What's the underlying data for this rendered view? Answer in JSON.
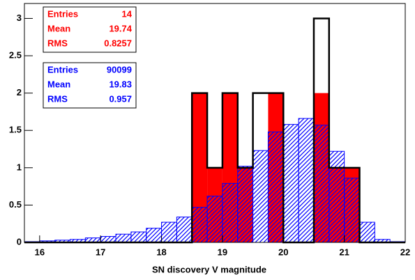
{
  "chart_data": {
    "type": "histogram",
    "xlabel": "SN discovery V magnitude",
    "bins": [
      15.75,
      16,
      16.25,
      16.5,
      16.75,
      17,
      17.25,
      17.5,
      17.75,
      18,
      18.25,
      18.5,
      18.75,
      19,
      19.25,
      19.5,
      19.75,
      20,
      20.25,
      20.5,
      20.75,
      21,
      21.25,
      21.5,
      21.75,
      22
    ],
    "series": [
      {
        "color": "#ff0000",
        "fill": "solid",
        "values": [
          0,
          0,
          0,
          0,
          0,
          0,
          0,
          0,
          0,
          0,
          0,
          2,
          1,
          2,
          1,
          0,
          2,
          0,
          0,
          2,
          1,
          1,
          0,
          0,
          0
        ]
      },
      {
        "color": "#0000ff",
        "fill": "hatch",
        "values": [
          0.01,
          0.02,
          0.03,
          0.04,
          0.06,
          0.08,
          0.11,
          0.14,
          0.19,
          0.27,
          0.34,
          0.47,
          0.62,
          0.79,
          1.02,
          1.23,
          1.48,
          1.58,
          1.66,
          1.57,
          1.22,
          0.86,
          0.27,
          0.04,
          0.01
        ]
      },
      {
        "color": "#000000",
        "fill": "none",
        "values": [
          0,
          0,
          0,
          0,
          0,
          0,
          0,
          0,
          0,
          0,
          0,
          2,
          1,
          2,
          1,
          2,
          2,
          0,
          0,
          3,
          1,
          1,
          0,
          0,
          0
        ]
      }
    ],
    "xlim": [
      15.75,
      22
    ],
    "xticks": [
      16,
      17,
      18,
      19,
      20,
      21,
      22
    ],
    "ylim": [
      0,
      3.2
    ],
    "yticks": [
      0,
      0.5,
      1,
      1.5,
      2,
      2.5,
      3
    ],
    "stats": [
      {
        "color": "#ff0000",
        "rows": [
          [
            "Entries",
            "14"
          ],
          [
            "Mean",
            "19.74"
          ],
          [
            "RMS",
            "0.8257"
          ]
        ]
      },
      {
        "color": "#0000ff",
        "rows": [
          [
            "Entries",
            "90099"
          ],
          [
            "Mean",
            "19.83"
          ],
          [
            "RMS",
            "0.957"
          ]
        ]
      }
    ]
  }
}
